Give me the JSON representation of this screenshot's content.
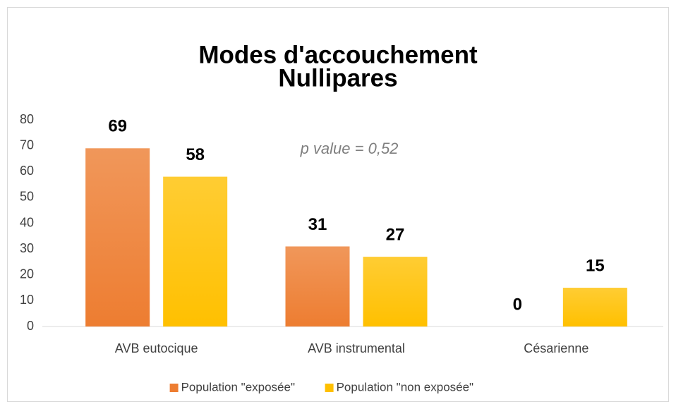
{
  "chart_data": {
    "type": "bar",
    "title": "Modes d'accouchement",
    "subtitle": "Nullipares",
    "annotation": "p value = 0,52",
    "categories": [
      "AVB eutocique",
      "AVB instrumental",
      "Césarienne"
    ],
    "series": [
      {
        "name": "Population \"exposée\"",
        "color": "#ed7d31",
        "values": [
          69,
          31,
          0
        ]
      },
      {
        "name": "Population \"non exposée\"",
        "color": "#ffc000",
        "values": [
          58,
          27,
          15
        ]
      }
    ],
    "ylim": [
      0,
      80
    ],
    "yticks": [
      0,
      10,
      20,
      30,
      40,
      50,
      60,
      70,
      80
    ],
    "grid": false,
    "legend": "bottom"
  }
}
